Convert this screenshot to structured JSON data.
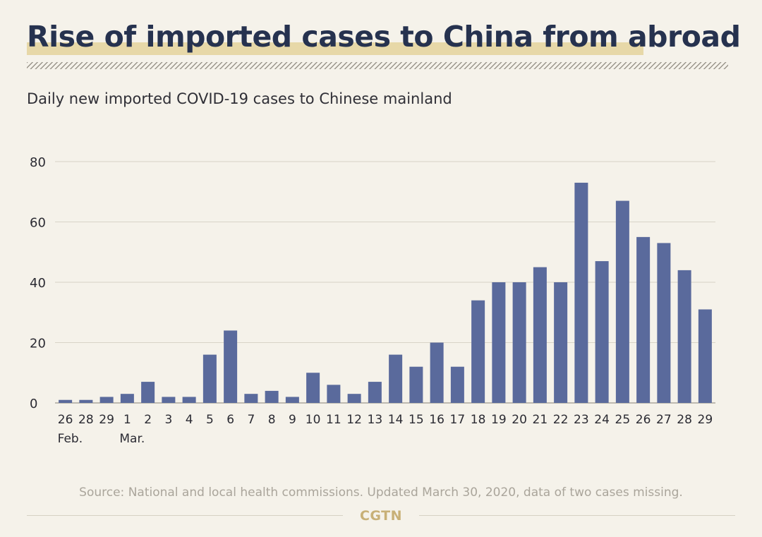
{
  "title": "Rise of imported cases to China from abroad",
  "subtitle": "Daily new imported COVID-19 cases to Chinese mainland",
  "source": "Source: National and local health commissions. Updated March 30, 2020, data of two cases missing.",
  "logo": "CGTN",
  "colors": {
    "bar": "#5a6a9c",
    "background": "#f5f2ea",
    "title": "#26324f",
    "highlight": "#e7d8a8",
    "logo": "#c8b077"
  },
  "chart_data": {
    "type": "bar",
    "title": "Daily new imported COVID-19 cases to Chinese mainland",
    "xlabel": "",
    "ylabel": "",
    "categories": [
      "26",
      "28",
      "29",
      "1",
      "2",
      "3",
      "4",
      "5",
      "6",
      "7",
      "8",
      "9",
      "10",
      "11",
      "12",
      "13",
      "14",
      "15",
      "16",
      "17",
      "18",
      "19",
      "20",
      "21",
      "22",
      "23",
      "24",
      "25",
      "26",
      "27",
      "28",
      "29"
    ],
    "month_labels": [
      {
        "label": "Feb.",
        "category_index": 0
      },
      {
        "label": "Mar.",
        "category_index": 3
      }
    ],
    "values": [
      1,
      1,
      2,
      3,
      7,
      2,
      2,
      16,
      24,
      3,
      4,
      2,
      10,
      6,
      3,
      7,
      16,
      12,
      20,
      12,
      34,
      40,
      40,
      45,
      40,
      73,
      47,
      67,
      55,
      53,
      44,
      31
    ],
    "yticks": [
      0,
      20,
      40,
      60,
      80
    ],
    "ylim": [
      0,
      80
    ],
    "grid": true,
    "legend": "none"
  }
}
